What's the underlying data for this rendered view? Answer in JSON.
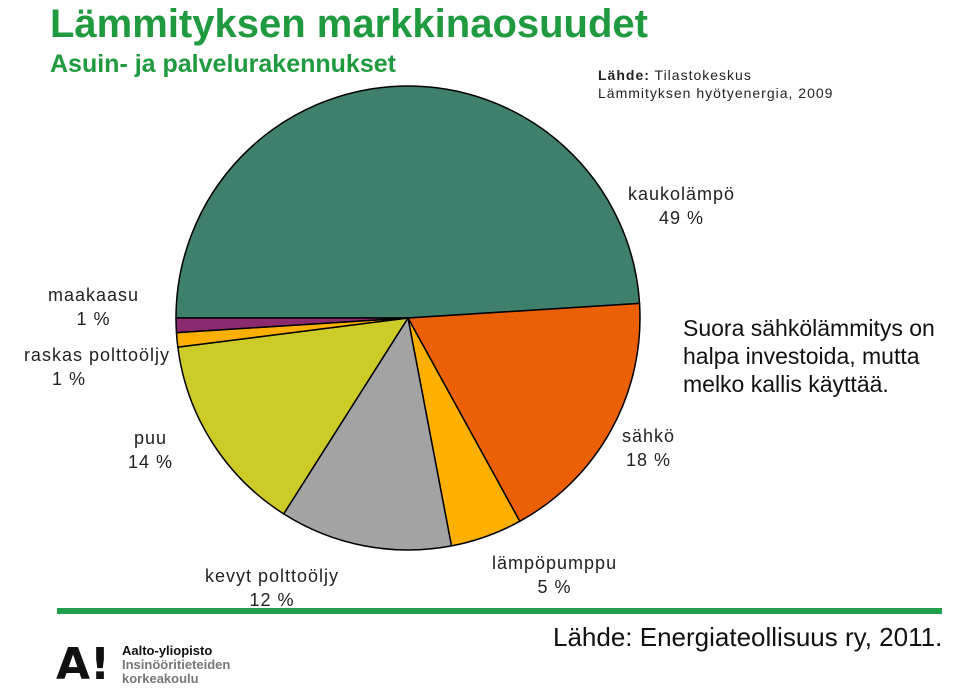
{
  "chart_data": {
    "type": "pie",
    "title": "Lämmityksen markkinaosuudet",
    "subtitle": "Asuin- ja palvelurakennukset",
    "slices": [
      {
        "name": "kaukolämpö",
        "value": 49,
        "label": "49 %",
        "color": "#3e806c"
      },
      {
        "name": "sähkö",
        "value": 18,
        "label": "18 %",
        "color": "#ec6005"
      },
      {
        "name": "lämpöpumppu",
        "value": 5,
        "label": "5 %",
        "color": "#fdb000"
      },
      {
        "name": "kevyt polttoöljy",
        "value": 12,
        "label": "12 %",
        "color": "#a3a3a3"
      },
      {
        "name": "puu",
        "value": 14,
        "label": "14 %",
        "color": "#cccb28"
      },
      {
        "name": "raskas polttoöljy",
        "value": 1,
        "label": "1 %",
        "color": "#fdb000"
      },
      {
        "name": "maakaasu",
        "value": 1,
        "label": "1 %",
        "color": "#8b2a6f"
      }
    ]
  },
  "source_top": {
    "prefix": "Lähde:",
    "text": "Tilastokeskus",
    "line2": "Lämmityksen hyötyenergia, 2009"
  },
  "note": {
    "line1": "Suora sähkölämmitys on",
    "line2": "halpa investoida, mutta",
    "line3": "melko kallis käyttää."
  },
  "source_bottom": "Lähde: Energiateollisuus ry, 2011.",
  "logo": {
    "mark": "A!",
    "line1": "Aalto-yliopisto",
    "line2": "Insinööritieteiden",
    "line3": "korkeakoulu"
  },
  "colors": {
    "accent_green": "#1f9a3f"
  }
}
